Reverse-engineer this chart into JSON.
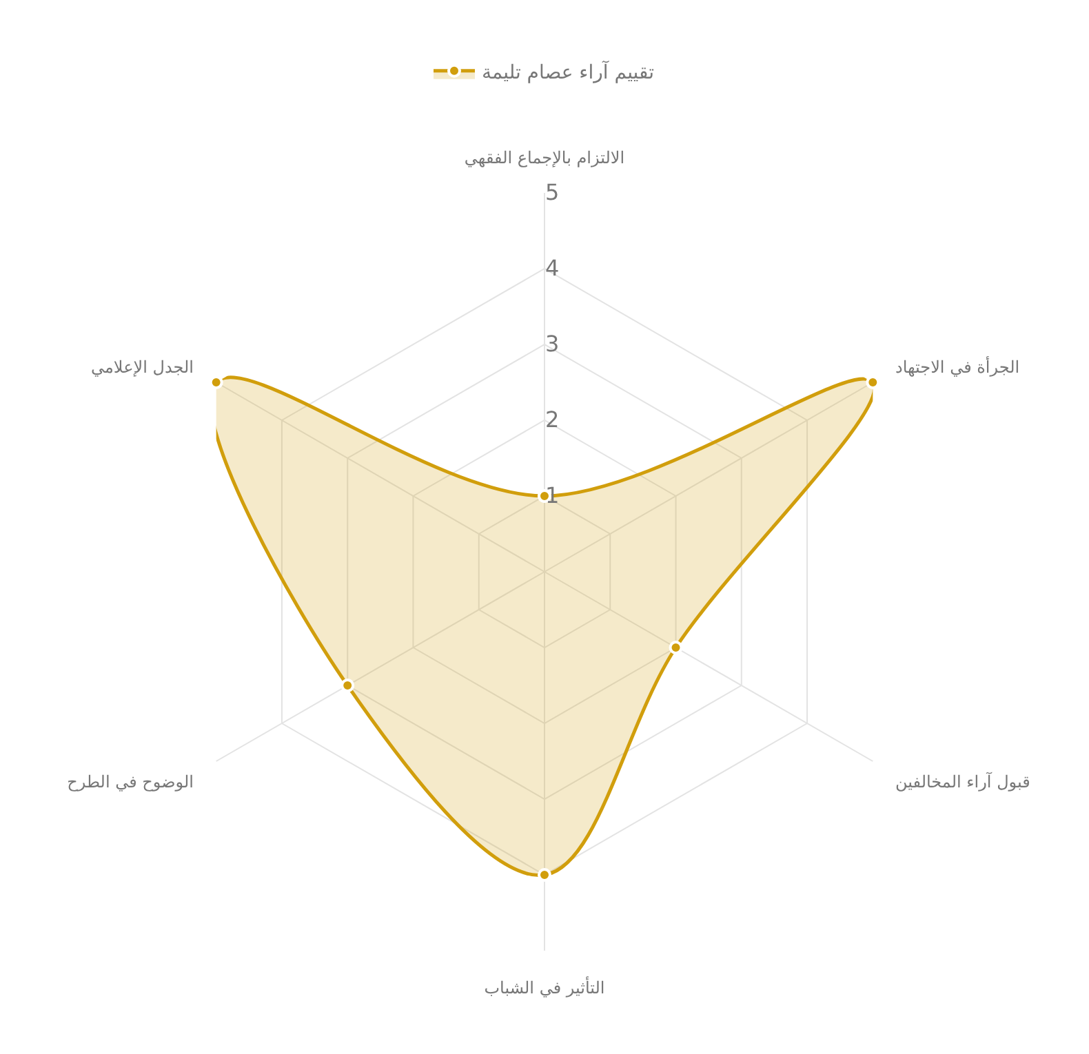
{
  "chart_data": {
    "type": "radar",
    "categories": [
      "الالتزام بالإجماع الفقهي",
      "الجرأة في الاجتهاد",
      "قبول آراء المخالفين",
      "التأثير في الشباب",
      "الوضوح في الطرح",
      "الجدل الإعلامي"
    ],
    "series": [
      {
        "name": "تقييم آراء عصام تليمة",
        "color": "#d19e0c",
        "values": [
          1,
          5,
          2,
          4,
          3,
          5
        ]
      }
    ],
    "ylim": [
      0,
      5
    ],
    "yticks": [
      1,
      2,
      3,
      4,
      5
    ],
    "grid": true,
    "legend": "top",
    "marker": "circle",
    "line_style": "solid"
  }
}
